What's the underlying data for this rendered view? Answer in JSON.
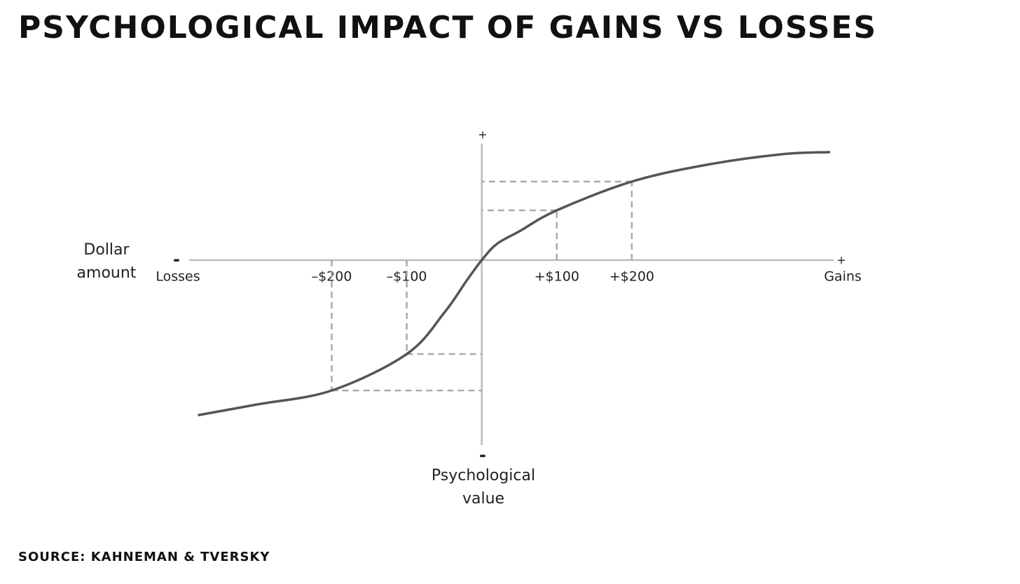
{
  "chart_data": {
    "type": "line",
    "title": "PSYCHOLOGICAL IMPACT OF GAINS VS LOSSES",
    "source": "SOURCE: KAHNEMAN & TVERSKY",
    "xlabel": "Dollar amount",
    "ylabel": "Psychological value",
    "x_axis_ends": {
      "negative_sign": "-",
      "negative_label": "Losses",
      "positive_sign": "+",
      "positive_label": "Gains"
    },
    "y_axis_ends": {
      "positive_sign": "+",
      "negative_sign": "-"
    },
    "xlim": [
      -390,
      469
    ],
    "ylim": [
      -264,
      166
    ],
    "xticks": [
      {
        "value": -200,
        "label": "–$200"
      },
      {
        "value": -100,
        "label": "–$100"
      },
      {
        "value": 100,
        "label": "+$100"
      },
      {
        "value": 200,
        "label": "+$200"
      }
    ],
    "grid": false,
    "x": [
      -377,
      -300,
      -200,
      -100,
      -50,
      -20,
      0,
      20,
      50,
      100,
      200,
      300,
      400,
      463
    ],
    "series": [
      {
        "color": "#555555",
        "values": [
          -221,
          -206,
          -186,
          -134,
          -75,
          -29,
          0,
          23,
          41,
          71,
          112,
          136,
          151,
          154
        ]
      }
    ]
  }
}
